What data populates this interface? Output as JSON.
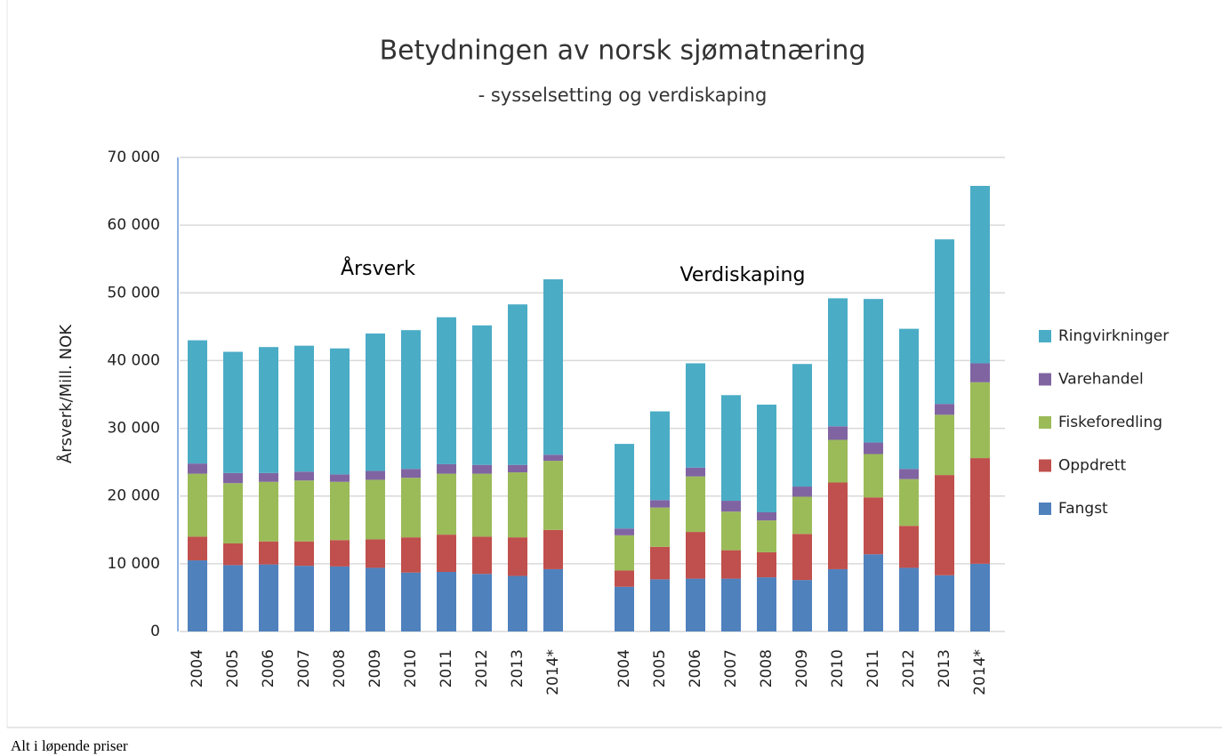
{
  "chart_data": {
    "type": "stacked_bar",
    "title": "Betydningen av norsk sjømatnæring",
    "subtitle": "- sysselsetting og verdiskaping",
    "y_label": "Årsverk/Mill. NOK",
    "annotations": [
      "Årsverk",
      "Verdiskaping"
    ],
    "footnote": "Alt i løpende priser",
    "categories": [
      "2004",
      "2005",
      "2006",
      "2007",
      "2008",
      "2009",
      "2010",
      "2011",
      "2012",
      "2013",
      "2014*",
      null,
      "2004",
      "2005",
      "2006",
      "2007",
      "2008",
      "2009",
      "2010",
      "2011",
      "2012",
      "2013",
      "2014*"
    ],
    "series": [
      {
        "name": "Fangst",
        "color": "#4f81bd",
        "values": [
          10500,
          9800,
          9900,
          9700,
          9600,
          9400,
          8700,
          8800,
          8500,
          8200,
          9200,
          null,
          6600,
          7700,
          7800,
          7800,
          8000,
          7600,
          9200,
          11400,
          9400,
          8300,
          10000
        ]
      },
      {
        "name": "Oppdrett",
        "color": "#c0504d",
        "values": [
          3500,
          3200,
          3400,
          3600,
          3900,
          4200,
          5200,
          5500,
          5500,
          5700,
          5800,
          null,
          2400,
          4800,
          6900,
          4200,
          3700,
          6800,
          12800,
          8400,
          6200,
          14800,
          15600
        ]
      },
      {
        "name": "Fiskeforedling",
        "color": "#9bbb59",
        "values": [
          9300,
          8900,
          8800,
          9000,
          8600,
          8800,
          8800,
          9000,
          9300,
          9600,
          10200,
          null,
          5200,
          5800,
          8200,
          5700,
          4700,
          5500,
          6300,
          6400,
          6900,
          8900,
          11200
        ]
      },
      {
        "name": "Varehandel",
        "color": "#8064a2",
        "values": [
          1500,
          1500,
          1300,
          1300,
          1100,
          1300,
          1300,
          1400,
          1300,
          1100,
          900,
          null,
          1000,
          1100,
          1300,
          1600,
          1200,
          1500,
          2000,
          1700,
          1500,
          1600,
          2800
        ]
      },
      {
        "name": "Ringvirkninger",
        "color": "#4bacc6",
        "values": [
          18200,
          17900,
          18600,
          18600,
          18600,
          20300,
          20500,
          21700,
          20600,
          23700,
          25900,
          null,
          12500,
          13100,
          15400,
          15600,
          15900,
          18100,
          18900,
          21200,
          20700,
          24300,
          26200
        ]
      }
    ],
    "ylim": [
      0,
      70000
    ],
    "yticks": [
      0,
      {
        "value": 10000,
        "label": "10 000"
      },
      {
        "value": 20000,
        "label": "20 000"
      },
      {
        "value": 30000,
        "label": "30 000"
      },
      {
        "value": 40000,
        "label": "40 000"
      },
      {
        "value": 50000,
        "label": "50 000"
      },
      {
        "value": 60000,
        "label": "60 000"
      },
      {
        "value": 70000,
        "label": "70 000"
      }
    ],
    "grid": true,
    "legend": "right"
  }
}
